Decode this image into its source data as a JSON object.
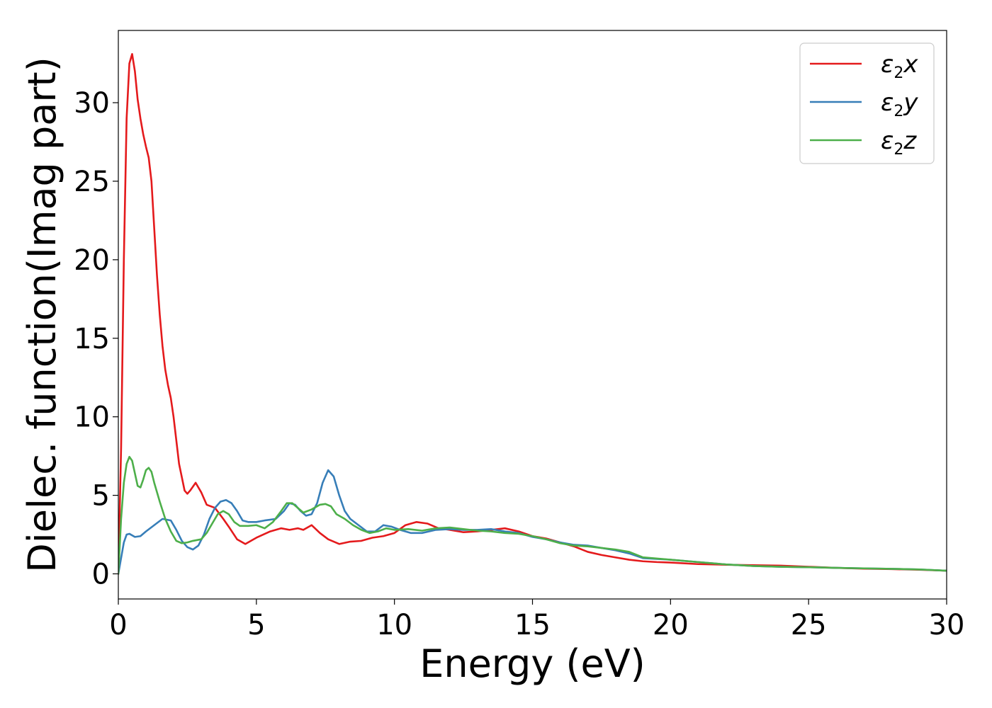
{
  "chart_data": {
    "type": "line",
    "title": "",
    "xlabel": "Energy (eV)",
    "ylabel": "Dielec. function(Imag part)",
    "xlim": [
      0,
      30
    ],
    "ylim": [
      -1.6,
      34.6
    ],
    "xticks": [
      0,
      5,
      10,
      15,
      20,
      25,
      30
    ],
    "yticks": [
      0,
      5,
      10,
      15,
      20,
      25,
      30
    ],
    "grid": false,
    "legend_position": "top-right",
    "series": [
      {
        "name": "ε₂x",
        "legend": {
          "base": "ε",
          "sub": "2",
          "var": "x"
        },
        "color": "#e41a1c",
        "points": [
          [
            0,
            0
          ],
          [
            0.1,
            8
          ],
          [
            0.2,
            20
          ],
          [
            0.3,
            29
          ],
          [
            0.4,
            32.5
          ],
          [
            0.5,
            33.1
          ],
          [
            0.6,
            32
          ],
          [
            0.7,
            30.2
          ],
          [
            0.8,
            29
          ],
          [
            0.9,
            28
          ],
          [
            1.0,
            27.2
          ],
          [
            1.1,
            26.5
          ],
          [
            1.2,
            25
          ],
          [
            1.3,
            22
          ],
          [
            1.4,
            19
          ],
          [
            1.5,
            16.5
          ],
          [
            1.6,
            14.5
          ],
          [
            1.7,
            13
          ],
          [
            1.8,
            12
          ],
          [
            1.9,
            11.2
          ],
          [
            2.0,
            10
          ],
          [
            2.2,
            7
          ],
          [
            2.4,
            5.3
          ],
          [
            2.5,
            5.1
          ],
          [
            2.6,
            5.3
          ],
          [
            2.8,
            5.8
          ],
          [
            3.0,
            5.2
          ],
          [
            3.2,
            4.4
          ],
          [
            3.5,
            4.2
          ],
          [
            3.8,
            3.5
          ],
          [
            4.0,
            3.0
          ],
          [
            4.3,
            2.2
          ],
          [
            4.6,
            1.9
          ],
          [
            5.0,
            2.3
          ],
          [
            5.5,
            2.7
          ],
          [
            5.9,
            2.9
          ],
          [
            6.2,
            2.8
          ],
          [
            6.5,
            2.9
          ],
          [
            6.7,
            2.8
          ],
          [
            7.0,
            3.1
          ],
          [
            7.3,
            2.6
          ],
          [
            7.6,
            2.2
          ],
          [
            8.0,
            1.9
          ],
          [
            8.4,
            2.05
          ],
          [
            8.8,
            2.1
          ],
          [
            9.2,
            2.3
          ],
          [
            9.6,
            2.4
          ],
          [
            10.0,
            2.6
          ],
          [
            10.4,
            3.1
          ],
          [
            10.8,
            3.3
          ],
          [
            11.2,
            3.2
          ],
          [
            11.6,
            2.9
          ],
          [
            12.0,
            2.8
          ],
          [
            12.5,
            2.65
          ],
          [
            13.0,
            2.7
          ],
          [
            13.5,
            2.8
          ],
          [
            14.0,
            2.9
          ],
          [
            14.5,
            2.7
          ],
          [
            15.0,
            2.4
          ],
          [
            15.5,
            2.25
          ],
          [
            16.0,
            2.0
          ],
          [
            16.5,
            1.75
          ],
          [
            17.0,
            1.4
          ],
          [
            17.5,
            1.2
          ],
          [
            18.0,
            1.05
          ],
          [
            18.5,
            0.9
          ],
          [
            19.0,
            0.8
          ],
          [
            19.5,
            0.75
          ],
          [
            20.0,
            0.72
          ],
          [
            21.0,
            0.62
          ],
          [
            22.0,
            0.58
          ],
          [
            23.0,
            0.55
          ],
          [
            24.0,
            0.52
          ],
          [
            25.0,
            0.45
          ],
          [
            26.0,
            0.38
          ],
          [
            27.0,
            0.33
          ],
          [
            28.0,
            0.3
          ],
          [
            29.0,
            0.26
          ],
          [
            30.0,
            0.2
          ]
        ]
      },
      {
        "name": "ε₂y",
        "legend": {
          "base": "ε",
          "sub": "2",
          "var": "y"
        },
        "color": "#377eb8",
        "points": [
          [
            0,
            0
          ],
          [
            0.1,
            1.0
          ],
          [
            0.2,
            2.0
          ],
          [
            0.3,
            2.5
          ],
          [
            0.4,
            2.55
          ],
          [
            0.6,
            2.35
          ],
          [
            0.8,
            2.4
          ],
          [
            1.0,
            2.7
          ],
          [
            1.3,
            3.1
          ],
          [
            1.6,
            3.5
          ],
          [
            1.9,
            3.4
          ],
          [
            2.1,
            2.8
          ],
          [
            2.3,
            2.1
          ],
          [
            2.5,
            1.7
          ],
          [
            2.7,
            1.55
          ],
          [
            2.9,
            1.8
          ],
          [
            3.1,
            2.5
          ],
          [
            3.3,
            3.5
          ],
          [
            3.5,
            4.2
          ],
          [
            3.7,
            4.6
          ],
          [
            3.9,
            4.7
          ],
          [
            4.1,
            4.5
          ],
          [
            4.3,
            4.0
          ],
          [
            4.5,
            3.4
          ],
          [
            4.7,
            3.3
          ],
          [
            5.0,
            3.3
          ],
          [
            5.3,
            3.4
          ],
          [
            5.7,
            3.5
          ],
          [
            6.0,
            4.0
          ],
          [
            6.2,
            4.5
          ],
          [
            6.4,
            4.4
          ],
          [
            6.6,
            4.0
          ],
          [
            6.8,
            3.7
          ],
          [
            7.0,
            3.8
          ],
          [
            7.2,
            4.5
          ],
          [
            7.4,
            5.8
          ],
          [
            7.6,
            6.6
          ],
          [
            7.8,
            6.2
          ],
          [
            8.0,
            5.0
          ],
          [
            8.2,
            4.0
          ],
          [
            8.4,
            3.5
          ],
          [
            8.7,
            3.1
          ],
          [
            9.0,
            2.7
          ],
          [
            9.3,
            2.7
          ],
          [
            9.6,
            3.1
          ],
          [
            9.9,
            3.0
          ],
          [
            10.2,
            2.8
          ],
          [
            10.6,
            2.6
          ],
          [
            11.0,
            2.6
          ],
          [
            11.5,
            2.8
          ],
          [
            12.0,
            2.85
          ],
          [
            12.5,
            2.8
          ],
          [
            13.0,
            2.8
          ],
          [
            13.5,
            2.85
          ],
          [
            14.0,
            2.7
          ],
          [
            14.5,
            2.6
          ],
          [
            15.0,
            2.35
          ],
          [
            15.5,
            2.2
          ],
          [
            16.0,
            2.0
          ],
          [
            16.5,
            1.85
          ],
          [
            17.0,
            1.8
          ],
          [
            17.5,
            1.65
          ],
          [
            18.0,
            1.5
          ],
          [
            18.5,
            1.3
          ],
          [
            19.0,
            1.0
          ],
          [
            20.0,
            0.9
          ],
          [
            21.0,
            0.75
          ],
          [
            22.0,
            0.6
          ],
          [
            23.0,
            0.5
          ],
          [
            24.0,
            0.45
          ],
          [
            25.0,
            0.42
          ],
          [
            26.0,
            0.38
          ],
          [
            27.0,
            0.35
          ],
          [
            28.0,
            0.32
          ],
          [
            29.0,
            0.28
          ],
          [
            30.0,
            0.2
          ]
        ]
      },
      {
        "name": "ε₂z",
        "legend": {
          "base": "ε",
          "sub": "2",
          "var": "z"
        },
        "color": "#4daf4a",
        "points": [
          [
            0,
            0
          ],
          [
            0.1,
            3.5
          ],
          [
            0.2,
            5.8
          ],
          [
            0.3,
            7.0
          ],
          [
            0.4,
            7.45
          ],
          [
            0.5,
            7.2
          ],
          [
            0.6,
            6.4
          ],
          [
            0.7,
            5.6
          ],
          [
            0.8,
            5.5
          ],
          [
            0.9,
            6.0
          ],
          [
            1.0,
            6.6
          ],
          [
            1.1,
            6.75
          ],
          [
            1.2,
            6.5
          ],
          [
            1.3,
            5.8
          ],
          [
            1.5,
            4.6
          ],
          [
            1.7,
            3.5
          ],
          [
            1.9,
            2.7
          ],
          [
            2.1,
            2.1
          ],
          [
            2.3,
            1.95
          ],
          [
            2.5,
            2.0
          ],
          [
            2.7,
            2.1
          ],
          [
            3.0,
            2.2
          ],
          [
            3.2,
            2.6
          ],
          [
            3.4,
            3.2
          ],
          [
            3.6,
            3.8
          ],
          [
            3.8,
            4.0
          ],
          [
            4.0,
            3.8
          ],
          [
            4.2,
            3.3
          ],
          [
            4.4,
            3.05
          ],
          [
            4.7,
            3.05
          ],
          [
            5.0,
            3.1
          ],
          [
            5.3,
            2.9
          ],
          [
            5.6,
            3.3
          ],
          [
            5.9,
            4.0
          ],
          [
            6.1,
            4.5
          ],
          [
            6.3,
            4.5
          ],
          [
            6.5,
            4.2
          ],
          [
            6.7,
            3.9
          ],
          [
            7.0,
            4.1
          ],
          [
            7.3,
            4.4
          ],
          [
            7.5,
            4.45
          ],
          [
            7.7,
            4.3
          ],
          [
            7.9,
            3.8
          ],
          [
            8.2,
            3.5
          ],
          [
            8.5,
            3.1
          ],
          [
            8.8,
            2.8
          ],
          [
            9.1,
            2.6
          ],
          [
            9.4,
            2.7
          ],
          [
            9.7,
            2.9
          ],
          [
            10.0,
            2.8
          ],
          [
            10.5,
            2.85
          ],
          [
            11.0,
            2.75
          ],
          [
            11.5,
            2.9
          ],
          [
            12.0,
            2.95
          ],
          [
            12.5,
            2.85
          ],
          [
            13.0,
            2.75
          ],
          [
            13.5,
            2.7
          ],
          [
            14.0,
            2.6
          ],
          [
            14.5,
            2.55
          ],
          [
            15.0,
            2.4
          ],
          [
            15.5,
            2.2
          ],
          [
            16.0,
            1.95
          ],
          [
            16.5,
            1.8
          ],
          [
            17.0,
            1.75
          ],
          [
            17.5,
            1.65
          ],
          [
            18.0,
            1.55
          ],
          [
            18.5,
            1.4
          ],
          [
            19.0,
            1.05
          ],
          [
            20.0,
            0.9
          ],
          [
            21.0,
            0.75
          ],
          [
            22.0,
            0.6
          ],
          [
            23.0,
            0.5
          ],
          [
            24.0,
            0.45
          ],
          [
            25.0,
            0.42
          ],
          [
            26.0,
            0.38
          ],
          [
            27.0,
            0.35
          ],
          [
            28.0,
            0.32
          ],
          [
            29.0,
            0.28
          ],
          [
            30.0,
            0.2
          ]
        ]
      }
    ]
  }
}
